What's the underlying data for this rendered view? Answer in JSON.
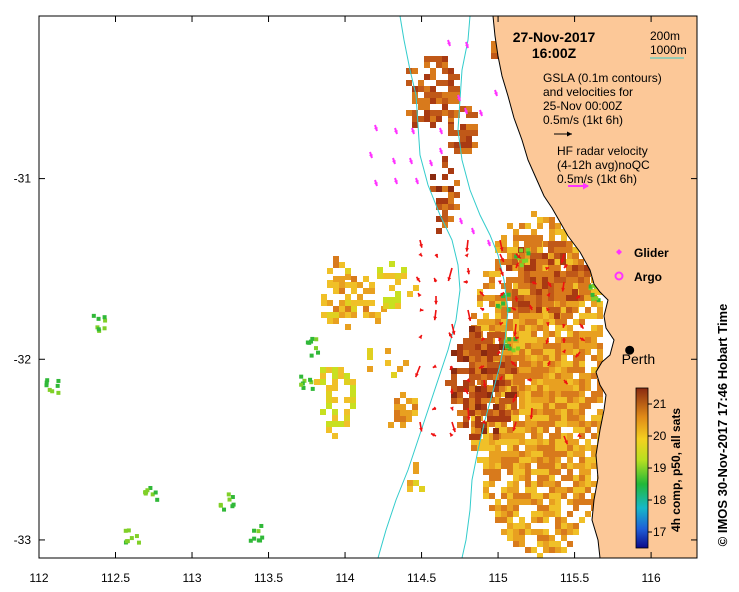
{
  "map": {
    "lon_ticks": [
      "112",
      "112.5",
      "113",
      "113.5",
      "114",
      "114.5",
      "115",
      "115.5",
      "116"
    ],
    "lat_ticks": [
      "-31",
      "-32",
      "-33"
    ],
    "lon_range": [
      112.0,
      116.3
    ],
    "lat_range": [
      -33.1,
      -30.1
    ]
  },
  "title": {
    "date": "27-Nov-2017",
    "time": "16:00Z"
  },
  "bathy_legend": {
    "line1": "200m",
    "line2": "1000m",
    "line_color": "#33cccc"
  },
  "gsla_legend": {
    "line1": "GSLA (0.1m contours)",
    "line2": "and velocities for",
    "line3": "25-Nov 00:00Z",
    "line4": "0.5m/s (1kt 6h)",
    "arrow_color": "#000000"
  },
  "hf_legend": {
    "line1": "HF radar velocity",
    "line2": "(4-12h avg)noQC",
    "line3": "0.5m/s (1kt 6h)",
    "arrow_color": "#ff33ff"
  },
  "symbols": {
    "glider_label": "Glider",
    "argo_label": "Argo",
    "color": "#ff33ff"
  },
  "city": {
    "name": "Perth",
    "lon": 115.86,
    "lat": -31.95
  },
  "colorbar": {
    "ticks": [
      "21",
      "20",
      "19",
      "18",
      "17"
    ],
    "label": "4h comp, p50, all sats",
    "range": [
      16.5,
      21.5
    ]
  },
  "credit": "© IMOS 30-Nov-2017 17:46 Hobart Time",
  "colors": {
    "land": "#fcc898",
    "ocean": "#ffffff",
    "coast": "#000000",
    "hf_arrow": "#ee1111",
    "glider": "#ff33ff"
  }
}
